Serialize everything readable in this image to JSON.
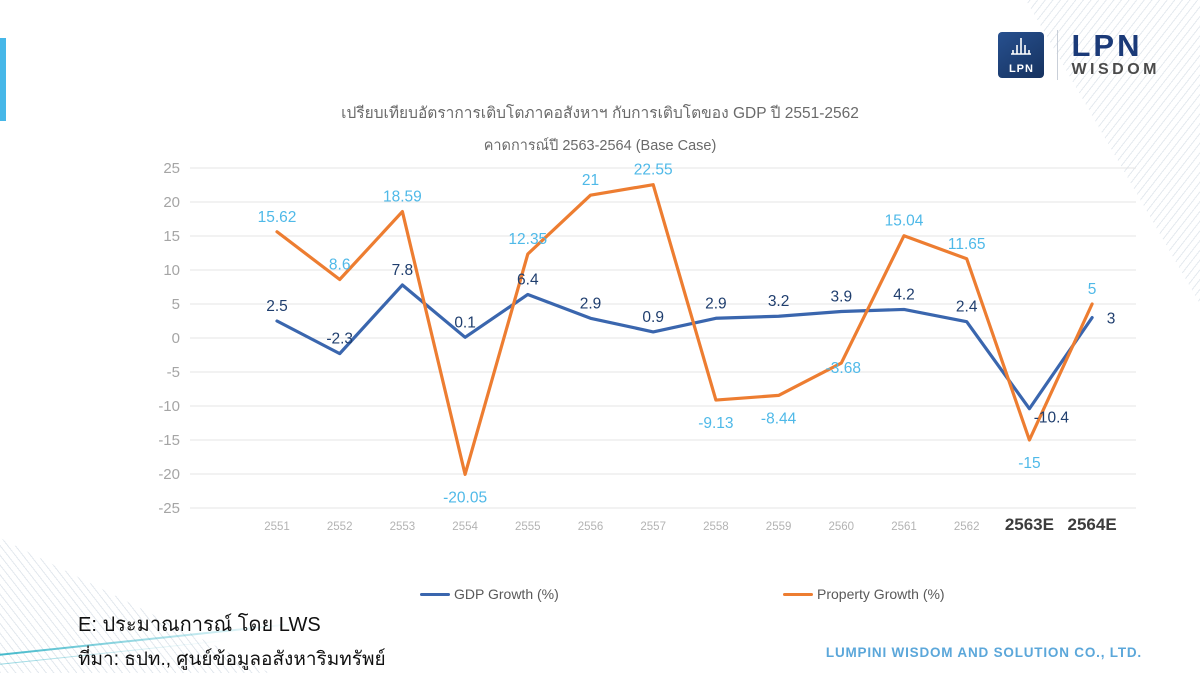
{
  "logo": {
    "icon_text": "LPN",
    "brand": "LPN",
    "sub_brand": "WISDOM"
  },
  "title": {
    "line1": "เปรียบเทียบอัตราการเติบโตภาคอสังหาฯ กับการเติบโตของ GDP ปี 2551-2562",
    "line2": "คาดการณ์ปี 2563-2564 (Base Case)"
  },
  "chart_data": {
    "type": "line",
    "categories": [
      "2551",
      "2552",
      "2553",
      "2554",
      "2555",
      "2556",
      "2557",
      "2558",
      "2559",
      "2560",
      "2561",
      "2562",
      "2563E",
      "2564E"
    ],
    "series": [
      {
        "name": "GDP Growth (%)",
        "color": "#3A66AE",
        "label_color": "#1F3E6E",
        "values": [
          2.5,
          -2.3,
          7.8,
          0.1,
          6.4,
          2.9,
          0.9,
          2.9,
          3.2,
          3.9,
          4.2,
          2.4,
          -10.4,
          3
        ]
      },
      {
        "name": "Property Growth (%)",
        "color": "#ED7D31",
        "label_color": "#4FB9E8",
        "values": [
          15.62,
          8.6,
          18.59,
          -20.05,
          12.35,
          21,
          22.55,
          -9.13,
          -8.44,
          -3.68,
          15.04,
          11.65,
          -15,
          5
        ]
      }
    ],
    "ylim": [
      -25,
      25
    ],
    "ytick_step": 5,
    "grid": true,
    "legend_position": "bottom"
  },
  "footer": {
    "note_line1": "E: ประมาณการณ์ โดย LWS",
    "note_line2": "ที่มา: ธปท., ศูนย์ข้อมูลอสังหาริมทรัพย์",
    "company": "LUMPINI WISDOM AND SOLUTION CO., LTD."
  },
  "colors": {
    "accent_bar": "#46B7E8",
    "gridline": "#E4E4E4",
    "axis_label": "#A5A5A5",
    "forecast_label": "#3C3C3C",
    "company_text": "#5BA7DA"
  }
}
